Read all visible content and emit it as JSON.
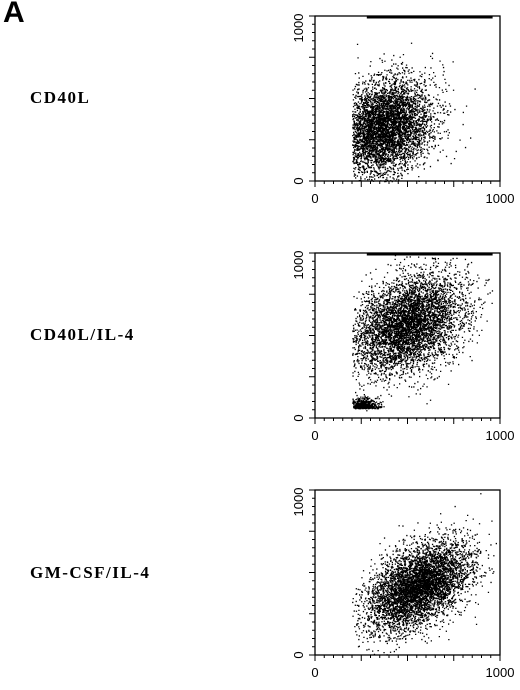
{
  "figure": {
    "panel_letter": "A"
  },
  "chart_data": [
    {
      "type": "scatter",
      "label": "CD40L",
      "x_ticks": [
        "0",
        "1000"
      ],
      "y_ticks": [
        "0",
        "1000"
      ],
      "xlim": [
        0,
        1000
      ],
      "ylim": [
        0,
        1000
      ],
      "cluster": {
        "center": [
          370,
          330
        ],
        "spread": [
          130,
          140
        ],
        "tilt": 0.25
      },
      "saturated_y": 1000
    },
    {
      "type": "scatter",
      "label": "CD40L/IL-4",
      "x_ticks": [
        "0",
        "1000"
      ],
      "y_ticks": [
        "0",
        "1000"
      ],
      "xlim": [
        0,
        1000
      ],
      "ylim": [
        0,
        1000
      ],
      "cluster": {
        "center": [
          500,
          570
        ],
        "spread": [
          150,
          140
        ],
        "tilt": 0.35
      },
      "minor_cluster": {
        "center": [
          260,
          60
        ],
        "spread": [
          40,
          30
        ]
      },
      "saturated_y": 1000
    },
    {
      "type": "scatter",
      "label": "GM-CSF/IL-4",
      "x_ticks": [
        "0",
        "1000"
      ],
      "y_ticks": [
        "0",
        "1000"
      ],
      "xlim": [
        0,
        1000
      ],
      "ylim": [
        0,
        1000
      ],
      "cluster": {
        "center": [
          560,
          420
        ],
        "spread": [
          140,
          120
        ],
        "tilt": 0.55
      },
      "saturated_y": null
    }
  ]
}
